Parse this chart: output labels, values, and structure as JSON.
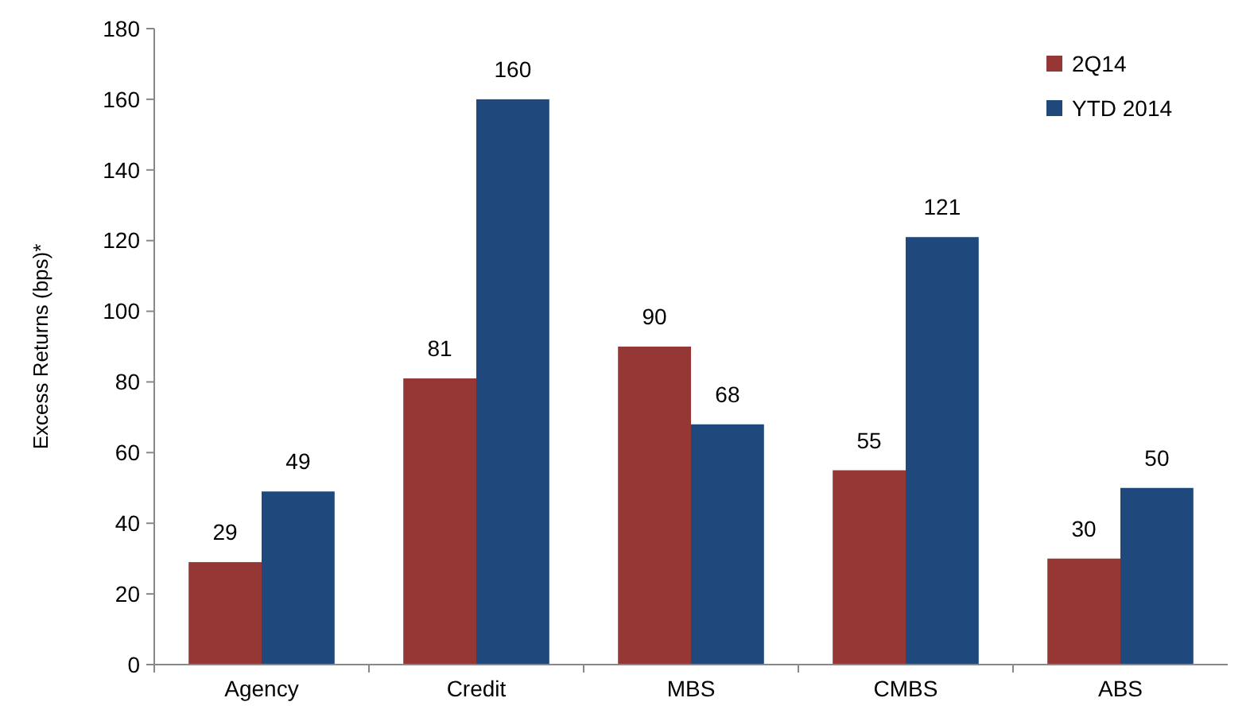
{
  "chart_data": {
    "type": "bar",
    "ylabel": "Excess Returns (bps)*",
    "categories": [
      "Agency",
      "Credit",
      "MBS",
      "CMBS",
      "ABS"
    ],
    "series": [
      {
        "name": "2Q14",
        "color": "#953735",
        "values": [
          29,
          81,
          90,
          55,
          30
        ]
      },
      {
        "name": "YTD 2014",
        "color": "#1f497d",
        "values": [
          49,
          160,
          68,
          121,
          50
        ]
      }
    ],
    "ylim": [
      0,
      180
    ],
    "yticks": [
      0,
      20,
      40,
      60,
      80,
      100,
      120,
      140,
      160,
      180
    ],
    "data_labels": true,
    "legend": "top right",
    "grid": false
  }
}
